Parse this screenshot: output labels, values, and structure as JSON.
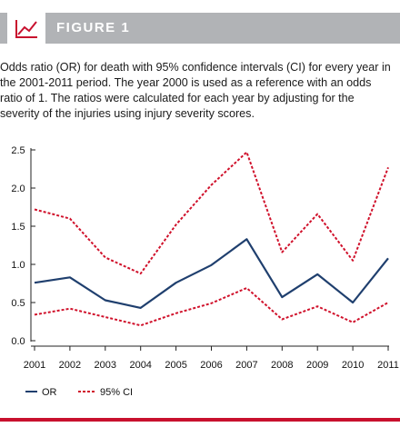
{
  "figure": {
    "label": "FIGURE 1",
    "caption": "Odds ratio (OR) for death with 95% confidence intervals (CI) for every year in the 2001-2011 period. The year 2000 is used as a reference with an odds ratio of 1. The ratios were calculated for each year by adjusting for the severity of the injuries using injury severity scores."
  },
  "colors": {
    "or_line": "#1f3f6e",
    "ci_line": "#d0112b",
    "header_bg": "#b1b3b6",
    "accent": "#c8102e"
  },
  "icons": {
    "header": "line-chart-icon"
  },
  "chart_data": {
    "type": "line",
    "x": [
      "2001",
      "2002",
      "2003",
      "2004",
      "2005",
      "2006",
      "2007",
      "2008",
      "2009",
      "2010",
      "2011"
    ],
    "series": [
      {
        "name": "OR",
        "style": "solid",
        "values": [
          0.76,
          0.83,
          0.53,
          0.43,
          0.76,
          0.99,
          1.33,
          0.57,
          0.87,
          0.5,
          1.08
        ]
      },
      {
        "name": "95% CI",
        "style": "dashed",
        "values": [
          1.72,
          1.6,
          1.09,
          0.88,
          1.52,
          2.04,
          2.47,
          1.16,
          1.66,
          1.05,
          2.27
        ]
      },
      {
        "name": "95% CI",
        "style": "dashed",
        "values": [
          0.34,
          0.42,
          0.31,
          0.2,
          0.36,
          0.49,
          0.69,
          0.28,
          0.45,
          0.24,
          0.5
        ]
      }
    ],
    "yticks": [
      "0.0",
      "0.5",
      "1.0",
      "1.5",
      "2.0",
      "2.5"
    ],
    "ytick_values": [
      0,
      0.5,
      1.0,
      1.5,
      2.0,
      2.5
    ],
    "ylim": [
      0,
      2.5
    ],
    "legend": [
      {
        "label": "OR",
        "style": "solid"
      },
      {
        "label": "95% CI",
        "style": "dashed"
      }
    ],
    "legend_position": "bottom-left",
    "grid": false
  }
}
